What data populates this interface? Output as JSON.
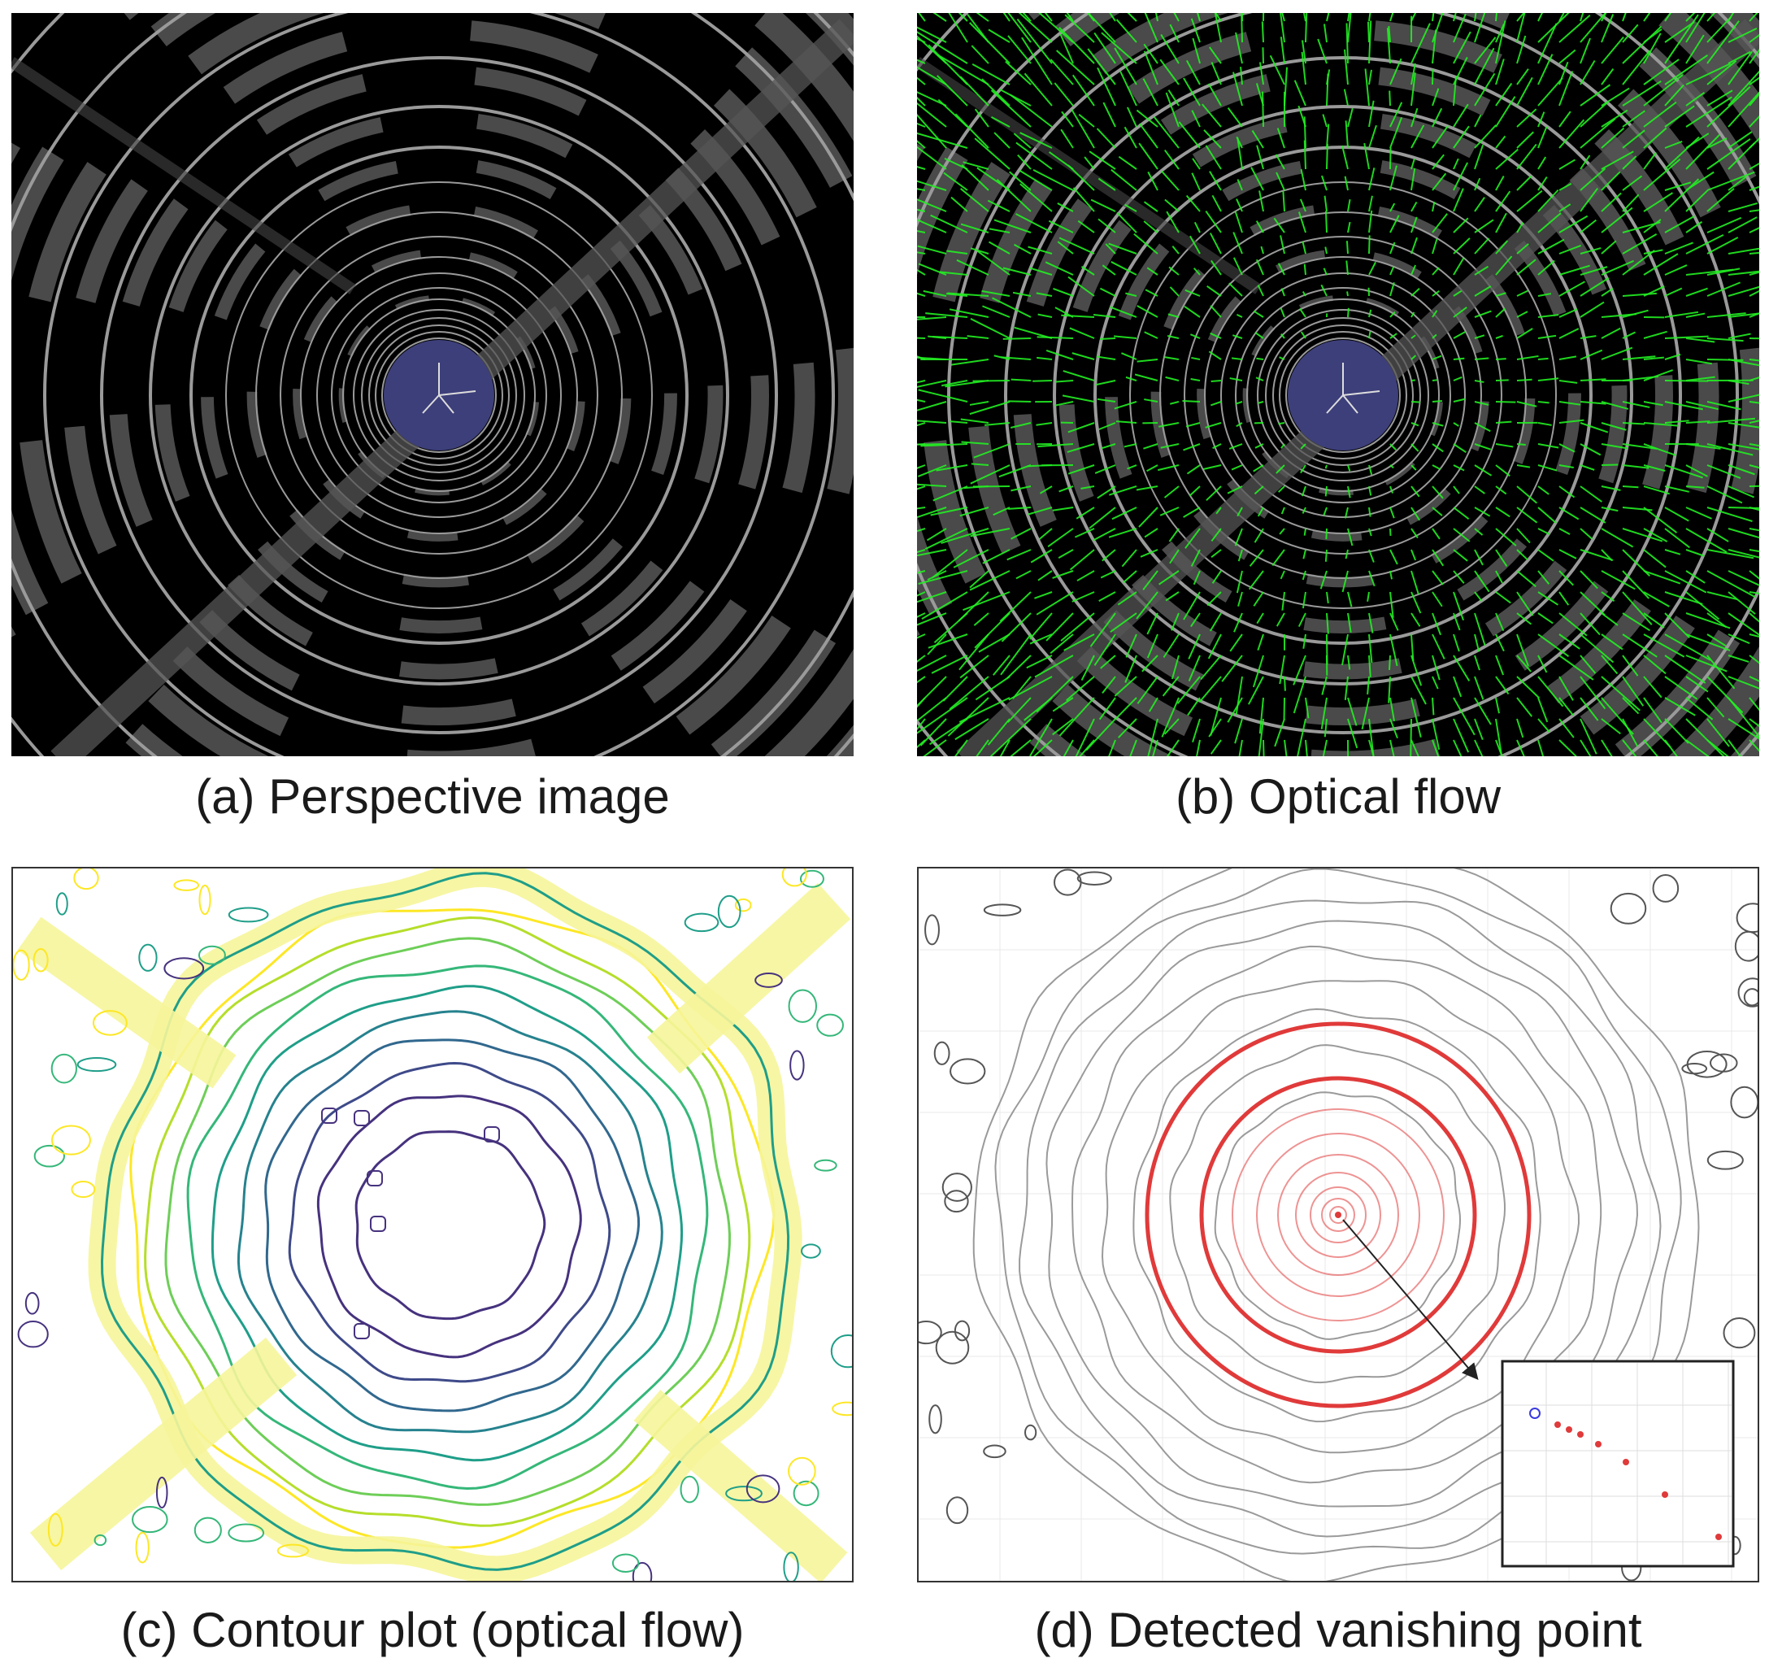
{
  "figure": {
    "panels": [
      {
        "id": "a",
        "caption": "(a) Perspective image"
      },
      {
        "id": "b",
        "caption": "(b) Optical flow"
      },
      {
        "id": "c",
        "caption": "(c) Contour plot (optical flow)"
      },
      {
        "id": "d",
        "caption": "(d) Detected vanishing point"
      }
    ],
    "colors": {
      "tunnel_ring": "#9a9a9a",
      "vanishing_disc": "#3d3f7a",
      "flow_vector": "#22ee22",
      "contour_low": "#46327e",
      "contour_mid": "#1f9e89",
      "contour_high": "#fde725",
      "vp_circle": "#e03a3a",
      "vp_estimate_open": "#3a3ae0"
    }
  }
}
